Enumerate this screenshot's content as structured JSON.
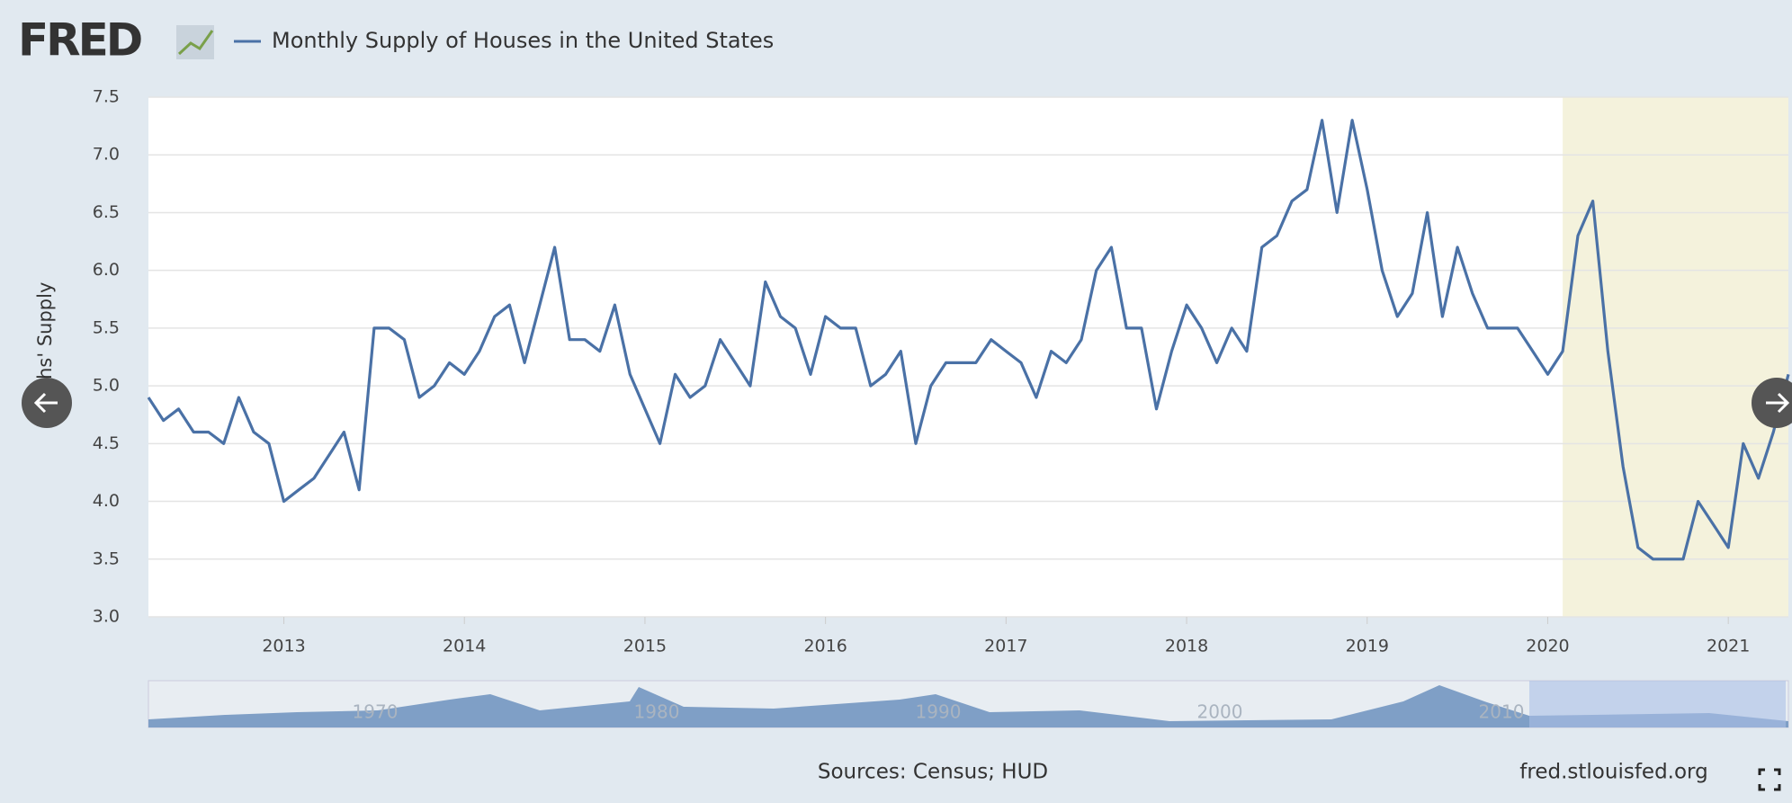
{
  "brand": "FRED",
  "chart_data": {
    "type": "line",
    "title": "Monthly Supply of Houses in the United States",
    "y_label": "Months' Supply",
    "source": "Sources: Census; HUD",
    "site": "fred.stlouisfed.org",
    "navigator_labels": [
      "1970",
      "1980",
      "1990",
      "2000",
      "2010"
    ],
    "xlim": [
      2012.25,
      2021.333
    ],
    "xticks": [
      2013,
      2014,
      2015,
      2016,
      2017,
      2018,
      2019,
      2020,
      2021
    ],
    "ylim": [
      3.0,
      7.5
    ],
    "yticks": [
      {
        "value": 3.0,
        "label": "3.0"
      },
      {
        "value": 3.5,
        "label": "3.5"
      },
      {
        "value": 4.0,
        "label": "4.0"
      },
      {
        "value": 4.5,
        "label": "4.5"
      },
      {
        "value": 5.0,
        "label": "5.0"
      },
      {
        "value": 5.5,
        "label": "5.5"
      },
      {
        "value": 6.0,
        "label": "6.0"
      },
      {
        "value": 6.5,
        "label": "6.5"
      },
      {
        "value": 7.0,
        "label": "7.0"
      },
      {
        "value": 7.5,
        "label": "7.5"
      }
    ],
    "grid": true,
    "shaded_ranges": [
      [
        2020.083,
        2021.333
      ]
    ],
    "shade_color": "#f4f2dc",
    "series": [
      {
        "name": "Monthly Supply of Houses in the United States",
        "color": "#4a71a6",
        "x": [
          2012.25,
          2012.333,
          2012.417,
          2012.5,
          2012.583,
          2012.667,
          2012.75,
          2012.833,
          2012.917,
          2013,
          2013.083,
          2013.167,
          2013.25,
          2013.333,
          2013.417,
          2013.5,
          2013.583,
          2013.667,
          2013.75,
          2013.833,
          2013.917,
          2014,
          2014.083,
          2014.167,
          2014.25,
          2014.333,
          2014.417,
          2014.5,
          2014.583,
          2014.667,
          2014.75,
          2014.833,
          2014.917,
          2015,
          2015.083,
          2015.167,
          2015.25,
          2015.333,
          2015.417,
          2015.5,
          2015.583,
          2015.667,
          2015.75,
          2015.833,
          2015.917,
          2016,
          2016.083,
          2016.167,
          2016.25,
          2016.333,
          2016.417,
          2016.5,
          2016.583,
          2016.667,
          2016.75,
          2016.833,
          2016.917,
          2017,
          2017.083,
          2017.167,
          2017.25,
          2017.333,
          2017.417,
          2017.5,
          2017.583,
          2017.667,
          2017.75,
          2017.833,
          2017.917,
          2018,
          2018.083,
          2018.167,
          2018.25,
          2018.333,
          2018.417,
          2018.5,
          2018.583,
          2018.667,
          2018.75,
          2018.833,
          2018.917,
          2019,
          2019.083,
          2019.167,
          2019.25,
          2019.333,
          2019.417,
          2019.5,
          2019.583,
          2019.667,
          2019.75,
          2019.833,
          2019.917,
          2020,
          2020.083,
          2020.167,
          2020.25,
          2020.333,
          2020.417,
          2020.5,
          2020.583,
          2020.667,
          2020.75,
          2020.833,
          2020.917,
          2021,
          2021.083,
          2021.167,
          2021.25,
          2021.333
        ],
        "values": [
          4.9,
          4.7,
          4.8,
          4.6,
          4.6,
          4.5,
          4.9,
          4.6,
          4.5,
          4.0,
          4.1,
          4.2,
          4.4,
          4.6,
          4.1,
          5.5,
          5.5,
          5.4,
          4.9,
          5.0,
          5.2,
          5.1,
          5.3,
          5.6,
          5.7,
          5.2,
          5.7,
          6.2,
          5.4,
          5.4,
          5.3,
          5.7,
          5.1,
          4.8,
          4.5,
          5.1,
          4.9,
          5.0,
          5.4,
          5.2,
          5.0,
          5.9,
          5.6,
          5.5,
          5.1,
          5.6,
          5.5,
          5.5,
          5.0,
          5.1,
          5.3,
          4.5,
          5.0,
          5.2,
          5.2,
          5.2,
          5.4,
          5.3,
          5.2,
          4.9,
          5.3,
          5.2,
          5.4,
          6.0,
          6.2,
          5.5,
          5.5,
          4.8,
          5.3,
          5.7,
          5.5,
          5.2,
          5.5,
          5.3,
          6.2,
          6.3,
          6.6,
          6.7,
          7.3,
          6.5,
          7.3,
          6.7,
          6.0,
          5.6,
          5.8,
          6.5,
          5.6,
          6.2,
          5.8,
          5.5,
          5.5,
          5.5,
          5.3,
          5.1,
          5.3,
          6.3,
          6.6,
          5.3,
          4.3,
          3.6,
          3.5,
          3.5,
          3.5,
          4.0,
          3.8,
          3.6,
          4.5,
          4.2,
          4.6,
          5.1
        ]
      }
    ]
  }
}
